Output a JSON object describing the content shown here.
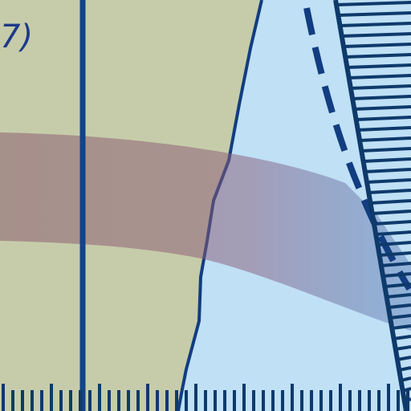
{
  "map": {
    "label_fragment": "7)",
    "label_fragment_top": "/"
  },
  "colors": {
    "land": "#c6ccaa",
    "water": "#bfe0f5",
    "coastline": "#123d80",
    "meridian": "#124488",
    "band": "#8d5f70",
    "tick_marks": "#0e3a6b",
    "label": "#1f3a88"
  },
  "features": {
    "band_style": "translucent curved band",
    "boundary_style": "dashed line",
    "frame_style": "graduated tick-mark border"
  },
  "icons": {
    "frame": "scale-ticks-border",
    "boundary": "dashed-boundary-line"
  }
}
